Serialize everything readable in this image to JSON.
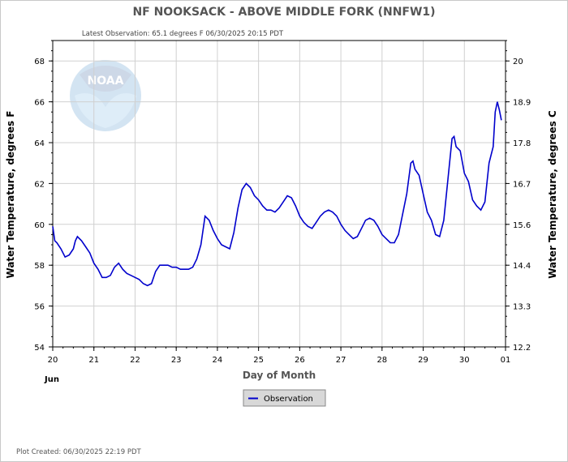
{
  "title": "NF NOOKSACK - ABOVE MIDDLE FORK  (NNFW1)",
  "latest_observation": "Latest Observation: 65.1 degrees F  06/30/2025 20:15 PDT",
  "plot_created": "Plot Created: 06/30/2025 22:19 PDT",
  "logo_text": "NOAA",
  "colors": {
    "series": "#0000cc",
    "grid": "#d0d0d0",
    "axis": "#000000",
    "title": "#555555",
    "logo": "#2a7bc0"
  },
  "chart_data": {
    "type": "line",
    "xlabel": "Day of Month",
    "ylabel": "Water Temperature, degrees F",
    "ylabel_right": "Water Temperature, degrees C",
    "month_label": "Jun",
    "xlim": [
      20,
      31
    ],
    "x_ticks": [
      "20",
      "21",
      "22",
      "23",
      "24",
      "25",
      "26",
      "27",
      "28",
      "29",
      "30",
      "01"
    ],
    "ylim": [
      54,
      69
    ],
    "y_ticks": [
      54,
      56,
      58,
      60,
      62,
      64,
      66,
      68
    ],
    "y_right_ticks": [
      "12.2",
      "13.3",
      "14.4",
      "15.6",
      "16.7",
      "17.8",
      "18.9",
      "20"
    ],
    "y_right_tick_values_f": [
      54,
      56,
      58,
      60,
      62,
      64,
      66,
      68
    ],
    "grid": true,
    "legend": {
      "position": "bottom-center",
      "entries": [
        "Observation"
      ]
    },
    "series": [
      {
        "name": "Observation",
        "x": [
          20.0,
          20.05,
          20.1,
          20.2,
          20.3,
          20.4,
          20.5,
          20.55,
          20.6,
          20.7,
          20.8,
          20.9,
          21.0,
          21.1,
          21.2,
          21.3,
          21.4,
          21.5,
          21.6,
          21.7,
          21.8,
          21.9,
          22.0,
          22.1,
          22.2,
          22.3,
          22.4,
          22.5,
          22.6,
          22.7,
          22.8,
          22.9,
          23.0,
          23.1,
          23.2,
          23.3,
          23.4,
          23.5,
          23.6,
          23.7,
          23.8,
          23.9,
          24.0,
          24.1,
          24.2,
          24.3,
          24.4,
          24.5,
          24.6,
          24.7,
          24.8,
          24.9,
          25.0,
          25.1,
          25.2,
          25.3,
          25.4,
          25.5,
          25.6,
          25.7,
          25.8,
          25.9,
          26.0,
          26.1,
          26.2,
          26.3,
          26.4,
          26.5,
          26.6,
          26.7,
          26.8,
          26.9,
          27.0,
          27.1,
          27.2,
          27.3,
          27.4,
          27.5,
          27.6,
          27.7,
          27.8,
          27.9,
          28.0,
          28.1,
          28.2,
          28.3,
          28.4,
          28.5,
          28.6,
          28.7,
          28.75,
          28.8,
          28.9,
          29.0,
          29.1,
          29.2,
          29.3,
          29.4,
          29.5,
          29.6,
          29.7,
          29.75,
          29.8,
          29.9,
          30.0,
          30.1,
          30.2,
          30.3,
          30.4,
          30.5,
          30.6,
          30.7,
          30.75,
          30.8,
          30.85,
          30.9
        ],
        "y": [
          59.9,
          59.2,
          59.1,
          58.8,
          58.4,
          58.5,
          58.8,
          59.2,
          59.4,
          59.2,
          58.9,
          58.6,
          58.1,
          57.8,
          57.4,
          57.4,
          57.5,
          57.9,
          58.1,
          57.8,
          57.6,
          57.5,
          57.4,
          57.3,
          57.1,
          57.0,
          57.1,
          57.7,
          58.0,
          58.0,
          58.0,
          57.9,
          57.9,
          57.8,
          57.8,
          57.8,
          57.9,
          58.3,
          59.0,
          60.4,
          60.2,
          59.7,
          59.3,
          59.0,
          58.9,
          58.8,
          59.6,
          60.8,
          61.7,
          62.0,
          61.8,
          61.4,
          61.2,
          60.9,
          60.7,
          60.7,
          60.6,
          60.8,
          61.1,
          61.4,
          61.3,
          60.9,
          60.4,
          60.1,
          59.9,
          59.8,
          60.1,
          60.4,
          60.6,
          60.7,
          60.6,
          60.4,
          60.0,
          59.7,
          59.5,
          59.3,
          59.4,
          59.8,
          60.2,
          60.3,
          60.2,
          59.9,
          59.5,
          59.3,
          59.1,
          59.1,
          59.5,
          60.5,
          61.5,
          63.0,
          63.1,
          62.7,
          62.4,
          61.5,
          60.6,
          60.2,
          59.5,
          59.4,
          60.2,
          62.2,
          64.2,
          64.3,
          63.8,
          63.6,
          62.5,
          62.1,
          61.2,
          60.9,
          60.7,
          61.1,
          63.0,
          63.8,
          65.5,
          66.0,
          65.6,
          65.1
        ]
      }
    ]
  }
}
